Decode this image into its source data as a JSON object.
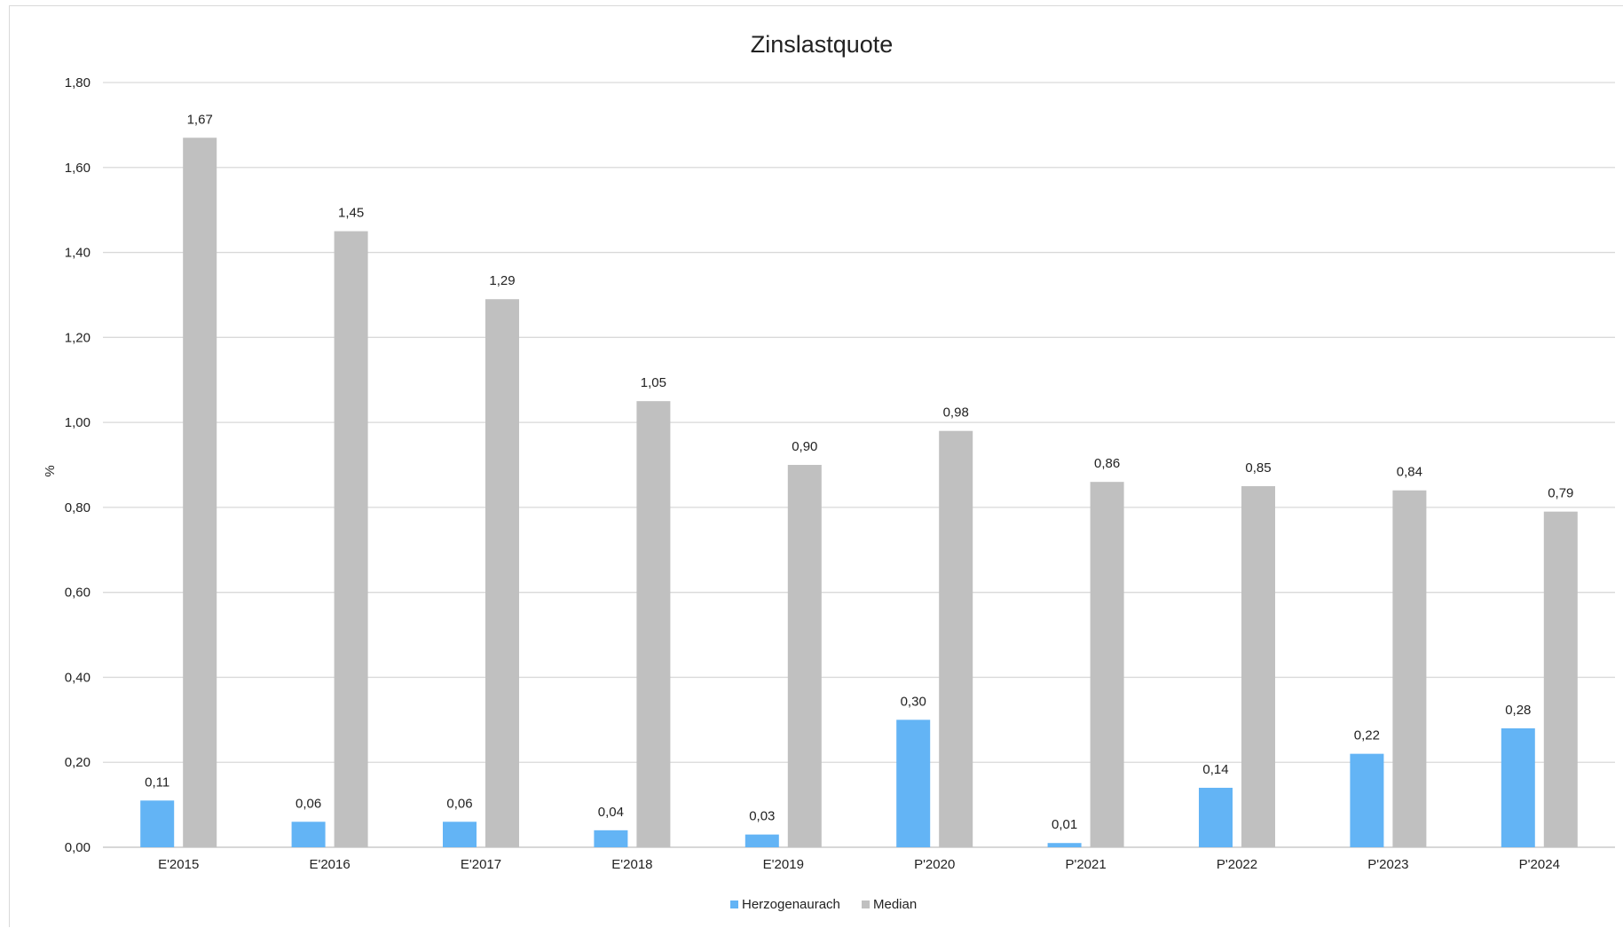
{
  "chart_data": {
    "type": "bar",
    "title": "Zinslastquote",
    "ylabel": "%",
    "xlabel": "",
    "categories": [
      "E'2015",
      "E'2016",
      "E'2017",
      "E'2018",
      "E'2019",
      "P'2020",
      "P'2021",
      "P'2022",
      "P'2023",
      "P'2024"
    ],
    "series": [
      {
        "name": "Herzogenaurach",
        "color": "#63b4f5",
        "values": [
          0.11,
          0.06,
          0.06,
          0.04,
          0.03,
          0.3,
          0.01,
          0.14,
          0.22,
          0.28
        ],
        "labels": [
          "0,11",
          "0,06",
          "0,06",
          "0,04",
          "0,03",
          "0,30",
          "0,01",
          "0,14",
          "0,22",
          "0,28"
        ]
      },
      {
        "name": "Median",
        "color": "#c0c0c0",
        "values": [
          1.67,
          1.45,
          1.29,
          1.05,
          0.9,
          0.98,
          0.86,
          0.85,
          0.84,
          0.79
        ],
        "labels": [
          "1,67",
          "1,45",
          "1,29",
          "1,05",
          "0,90",
          "0,98",
          "0,86",
          "0,85",
          "0,84",
          "0,79"
        ]
      }
    ],
    "ylim": [
      0,
      1.8
    ],
    "yticks": [
      0,
      0.2,
      0.4,
      0.6,
      0.8,
      1.0,
      1.2,
      1.4,
      1.6,
      1.8
    ],
    "ytick_labels": [
      "0,00",
      "0,20",
      "0,40",
      "0,60",
      "0,80",
      "1,00",
      "1,20",
      "1,40",
      "1,60",
      "1,80"
    ],
    "grid": true,
    "legend_position": "bottom-center"
  }
}
